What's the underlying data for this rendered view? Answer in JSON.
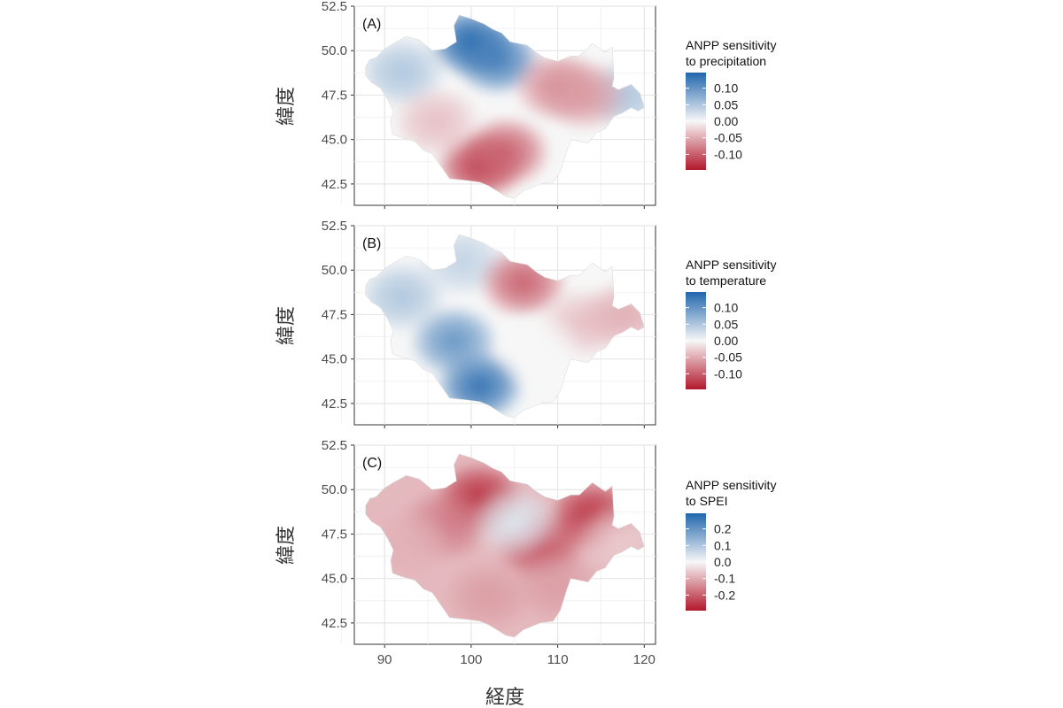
{
  "figure": {
    "x_axis_title": "経度",
    "x_ticks": [
      "90",
      "100",
      "110",
      "120"
    ],
    "y_ticks": [
      "42.5",
      "45.0",
      "47.5",
      "50.0",
      "52.5"
    ]
  },
  "scale": {
    "low_color": "#b2182b",
    "mid_color": "#f7f7f7",
    "high_color": "#2166ac"
  },
  "panels": [
    {
      "label": "(A)",
      "y_axis_title": "緯度",
      "legend_title_line1": "ANPP sensitivity",
      "legend_title_line2": "to precipitation",
      "legend_ticks": [
        "0.10",
        "0.05",
        "0.00",
        "-0.05",
        "-0.10"
      ],
      "hotspots": [
        {
          "lon": 100,
          "lat": 50.5,
          "value": 0.12
        },
        {
          "lon": 103,
          "lat": 49.5,
          "value": 0.1
        },
        {
          "lon": 92,
          "lat": 48.8,
          "value": 0.04
        },
        {
          "lon": 118,
          "lat": 47.5,
          "value": 0.04
        },
        {
          "lon": 101,
          "lat": 43.5,
          "value": -0.1
        },
        {
          "lon": 104,
          "lat": 44.3,
          "value": -0.08
        },
        {
          "lon": 110,
          "lat": 48.0,
          "value": -0.06
        },
        {
          "lon": 113,
          "lat": 47.5,
          "value": -0.05
        },
        {
          "lon": 96,
          "lat": 46.0,
          "value": -0.03
        }
      ]
    },
    {
      "label": "(B)",
      "y_axis_title": "緯度",
      "legend_title_line1": "ANPP sensitivity",
      "legend_title_line2": "to temperature",
      "legend_ticks": [
        "0.10",
        "0.05",
        "0.00",
        "-0.05",
        "-0.10"
      ],
      "hotspots": [
        {
          "lon": 101,
          "lat": 43.5,
          "value": 0.11
        },
        {
          "lon": 98,
          "lat": 46.0,
          "value": 0.08
        },
        {
          "lon": 92,
          "lat": 48.5,
          "value": 0.04
        },
        {
          "lon": 99,
          "lat": 50.5,
          "value": 0.03
        },
        {
          "lon": 106,
          "lat": 49.3,
          "value": -0.08
        },
        {
          "lon": 113,
          "lat": 47.0,
          "value": -0.03
        },
        {
          "lon": 118,
          "lat": 47.5,
          "value": -0.04
        },
        {
          "lon": 108,
          "lat": 45.5,
          "value": 0.0
        }
      ]
    },
    {
      "label": "(C)",
      "y_axis_title": "緯度",
      "legend_title_line1": "ANPP sensitivity",
      "legend_title_line2": "to SPEI",
      "legend_ticks": [
        "0.2",
        "0.1",
        "0.0",
        "-0.1",
        "-0.2"
      ],
      "hotspots": [
        {
          "lon": 101,
          "lat": 49.5,
          "value": -0.22
        },
        {
          "lon": 114,
          "lat": 48.5,
          "value": -0.22
        },
        {
          "lon": 108,
          "lat": 46.8,
          "value": -0.18
        },
        {
          "lon": 97,
          "lat": 48.0,
          "value": -0.14
        },
        {
          "lon": 105,
          "lat": 48.2,
          "value": 0.03
        },
        {
          "lon": 93,
          "lat": 47.0,
          "value": -0.08
        },
        {
          "lon": 102,
          "lat": 44.0,
          "value": -0.1
        },
        {
          "lon": 110,
          "lat": 44.5,
          "value": -0.1
        },
        {
          "lon": 117,
          "lat": 47.2,
          "value": -0.05
        }
      ]
    }
  ],
  "boundary": [
    [
      87.8,
      49.1
    ],
    [
      88.3,
      49.5
    ],
    [
      89.0,
      49.6
    ],
    [
      90.0,
      50.1
    ],
    [
      91.0,
      50.4
    ],
    [
      92.5,
      50.8
    ],
    [
      94.0,
      50.6
    ],
    [
      95.5,
      50.0
    ],
    [
      97.0,
      50.1
    ],
    [
      98.3,
      50.5
    ],
    [
      98.0,
      51.4
    ],
    [
      98.6,
      52.0
    ],
    [
      100.0,
      51.8
    ],
    [
      101.5,
      51.5
    ],
    [
      102.5,
      51.2
    ],
    [
      103.5,
      51.0
    ],
    [
      104.5,
      50.5
    ],
    [
      105.5,
      50.4
    ],
    [
      106.5,
      50.3
    ],
    [
      107.5,
      49.9
    ],
    [
      108.5,
      49.6
    ],
    [
      110.0,
      49.4
    ],
    [
      111.5,
      49.7
    ],
    [
      112.5,
      49.7
    ],
    [
      114.0,
      50.4
    ],
    [
      115.5,
      49.9
    ],
    [
      116.3,
      50.2
    ],
    [
      116.5,
      48.5
    ],
    [
      116.3,
      48.0
    ],
    [
      117.0,
      47.8
    ],
    [
      118.5,
      48.1
    ],
    [
      119.5,
      47.6
    ],
    [
      120.0,
      46.8
    ],
    [
      119.3,
      46.6
    ],
    [
      118.5,
      46.8
    ],
    [
      117.5,
      46.5
    ],
    [
      116.5,
      46.3
    ],
    [
      115.5,
      45.6
    ],
    [
      114.5,
      45.4
    ],
    [
      113.5,
      44.8
    ],
    [
      112.5,
      44.9
    ],
    [
      111.5,
      45.0
    ],
    [
      111.0,
      44.3
    ],
    [
      110.3,
      43.2
    ],
    [
      109.5,
      42.6
    ],
    [
      108.0,
      42.5
    ],
    [
      107.0,
      42.3
    ],
    [
      106.0,
      42.1
    ],
    [
      105.0,
      41.7
    ],
    [
      104.0,
      41.8
    ],
    [
      103.0,
      42.1
    ],
    [
      102.0,
      42.4
    ],
    [
      101.0,
      42.6
    ],
    [
      99.5,
      42.7
    ],
    [
      97.5,
      42.8
    ],
    [
      96.5,
      43.5
    ],
    [
      95.5,
      44.2
    ],
    [
      94.5,
      44.4
    ],
    [
      93.5,
      44.9
    ],
    [
      92.0,
      45.1
    ],
    [
      90.9,
      45.3
    ],
    [
      90.7,
      46.0
    ],
    [
      91.0,
      46.6
    ],
    [
      90.3,
      47.3
    ],
    [
      89.5,
      47.9
    ],
    [
      88.5,
      48.2
    ],
    [
      87.8,
      48.6
    ]
  ]
}
